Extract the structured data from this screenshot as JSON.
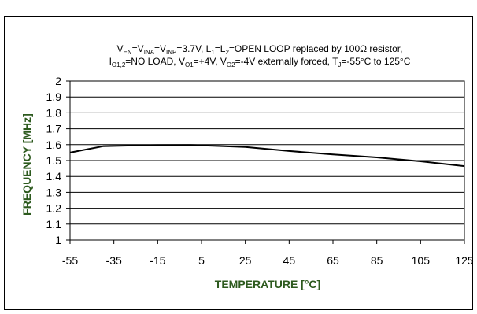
{
  "chart_data": {
    "type": "line",
    "title_line1": [
      {
        "t": "V"
      },
      {
        "sub": "EN"
      },
      {
        "t": "=V"
      },
      {
        "sub": "INA"
      },
      {
        "t": "=V"
      },
      {
        "sub": "INP"
      },
      {
        "t": "=3.7V,  L"
      },
      {
        "sub": "1"
      },
      {
        "t": "=L"
      },
      {
        "sub": "2"
      },
      {
        "t": "=OPEN LOOP replaced by 100Ω resistor,"
      }
    ],
    "title_line2": [
      {
        "t": "I"
      },
      {
        "sub": "O1,2"
      },
      {
        "t": "=NO LOAD, V"
      },
      {
        "sub": "O1"
      },
      {
        "t": "=+4V, V"
      },
      {
        "sub": "O2"
      },
      {
        "t": "=-4V externally forced, T"
      },
      {
        "sub": "J"
      },
      {
        "t": "=-55°C to 125°C"
      }
    ],
    "xlabel": "TEMPERATURE [°C]",
    "ylabel": "FREQUENCY [MHz]",
    "xlim": [
      -55,
      125
    ],
    "ylim": [
      1,
      2
    ],
    "x_ticks": [
      "-55",
      "-35",
      "-15",
      "5",
      "25",
      "45",
      "65",
      "85",
      "105",
      "125"
    ],
    "y_ticks": [
      "1",
      "1.1",
      "1.2",
      "1.3",
      "1.4",
      "1.5",
      "1.6",
      "1.7",
      "1.8",
      "1.9",
      "2"
    ],
    "grid": true,
    "series": [
      {
        "color": "#000000",
        "x": [
          -55,
          -40,
          -25,
          -15,
          0,
          25,
          45,
          65,
          85,
          105,
          125
        ],
        "y": [
          1.55,
          1.59,
          1.595,
          1.597,
          1.598,
          1.585,
          1.56,
          1.538,
          1.52,
          1.495,
          1.465
        ]
      }
    ]
  }
}
